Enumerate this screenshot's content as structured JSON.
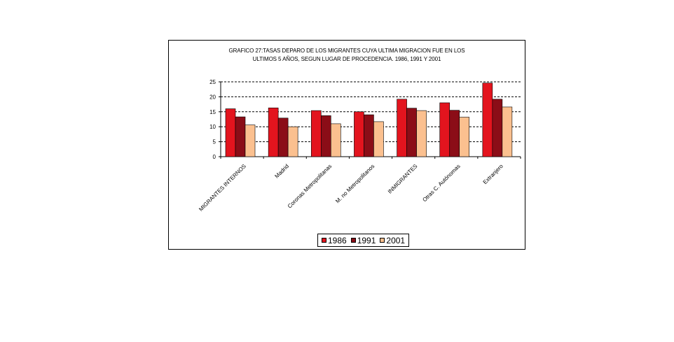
{
  "chart_data": {
    "type": "bar",
    "title_lines": [
      "GRAFICO 27:TASAS DEPARO DE LOS MIGRANTES CUYA ULTIMA MIGRACION FUE EN LOS",
      "ULTIMOS 5 AÑOS, SEGUN LUGAR DE PROCEDENCIA. 1986, 1991 Y 2001"
    ],
    "categories": [
      "MIGRANTES INTERNOS",
      "Madrid",
      "Coronas Metropolitanas",
      "M. no Metropolitanos",
      "INMIGRANTES",
      "Otras C. Autónomas",
      "Extranjero"
    ],
    "series": [
      {
        "name": "1986",
        "color": "#e3141e",
        "values": [
          16,
          16.3,
          15.4,
          15,
          19.2,
          18,
          24.6
        ]
      },
      {
        "name": "1991",
        "color": "#8b0d17",
        "values": [
          13.3,
          12.9,
          13.7,
          14,
          16.2,
          15.5,
          19.2
        ]
      },
      {
        "name": "2001",
        "color": "#fbc08f",
        "values": [
          10.6,
          10,
          11,
          11.7,
          15.4,
          13.2,
          16.6
        ]
      }
    ],
    "y_ticks": [
      "0",
      "5",
      "10",
      "15",
      "20",
      "25"
    ],
    "ylim": [
      0,
      25
    ],
    "grid": true,
    "legend_position": "bottom"
  }
}
